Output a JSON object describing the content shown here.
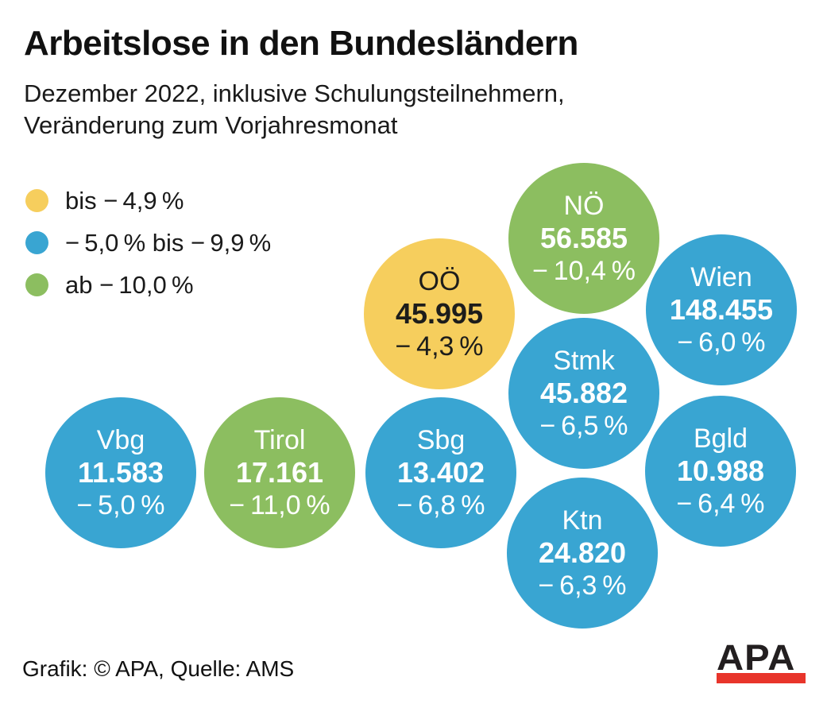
{
  "title": "Arbeitslose in den Bundesländern",
  "subtitle_line1": "Dezember 2022, inklusive Schulungsteilnehmern,",
  "subtitle_line2": "Veränderung zum Vorjahresmonat",
  "colors": {
    "yellow": "#F6CE5D",
    "blue": "#39A5D2",
    "green": "#8CBE60",
    "logo_red": "#E8352B",
    "text_dark": "#1D1D1B",
    "text_light": "#FFFFFF"
  },
  "chart_data": {
    "type": "bubble",
    "title": "Arbeitslose in den Bundesländern",
    "subtitle": "Dezember 2022, inklusive Schulungsteilnehmern, Veränderung zum Vorjahresmonat",
    "legend_position": "top-left",
    "legend": [
      {
        "label": "bis − 4,9 %",
        "color": "#F6CE5D"
      },
      {
        "label": "− 5,0 % bis − 9,9 %",
        "color": "#39A5D2"
      },
      {
        "label": "ab − 10,0 %",
        "color": "#8CBE60"
      }
    ],
    "bubbles": [
      {
        "region": "NÖ",
        "unemployed": 56585,
        "value_label": "56.585",
        "change_pct": -10.4,
        "change_label": "− 10,4 %",
        "color": "#8CBE60",
        "text_color": "#FFFFFF"
      },
      {
        "region": "OÖ",
        "unemployed": 45995,
        "value_label": "45.995",
        "change_pct": -4.3,
        "change_label": "− 4,3 %",
        "color": "#F6CE5D",
        "text_color": "#1D1D1B"
      },
      {
        "region": "Wien",
        "unemployed": 148455,
        "value_label": "148.455",
        "change_pct": -6.0,
        "change_label": "− 6,0 %",
        "color": "#39A5D2",
        "text_color": "#FFFFFF"
      },
      {
        "region": "Stmk",
        "unemployed": 45882,
        "value_label": "45.882",
        "change_pct": -6.5,
        "change_label": "− 6,5 %",
        "color": "#39A5D2",
        "text_color": "#FFFFFF"
      },
      {
        "region": "Vbg",
        "unemployed": 11583,
        "value_label": "11.583",
        "change_pct": -5.0,
        "change_label": "− 5,0 %",
        "color": "#39A5D2",
        "text_color": "#FFFFFF"
      },
      {
        "region": "Tirol",
        "unemployed": 17161,
        "value_label": "17.161",
        "change_pct": -11.0,
        "change_label": "− 11,0 %",
        "color": "#8CBE60",
        "text_color": "#FFFFFF"
      },
      {
        "region": "Sbg",
        "unemployed": 13402,
        "value_label": "13.402",
        "change_pct": -6.8,
        "change_label": "− 6,8 %",
        "color": "#39A5D2",
        "text_color": "#FFFFFF"
      },
      {
        "region": "Bgld",
        "unemployed": 10988,
        "value_label": "10.988",
        "change_pct": -6.4,
        "change_label": "− 6,4 %",
        "color": "#39A5D2",
        "text_color": "#FFFFFF"
      },
      {
        "region": "Ktn",
        "unemployed": 24820,
        "value_label": "24.820",
        "change_pct": -6.3,
        "change_label": "− 6,3 %",
        "color": "#39A5D2",
        "text_color": "#FFFFFF"
      }
    ],
    "source": "AMS"
  },
  "footer": {
    "credit": "Grafik: © APA, Quelle: AMS",
    "logo_text": "APA",
    "logo_bar_color": "#E8352B"
  }
}
